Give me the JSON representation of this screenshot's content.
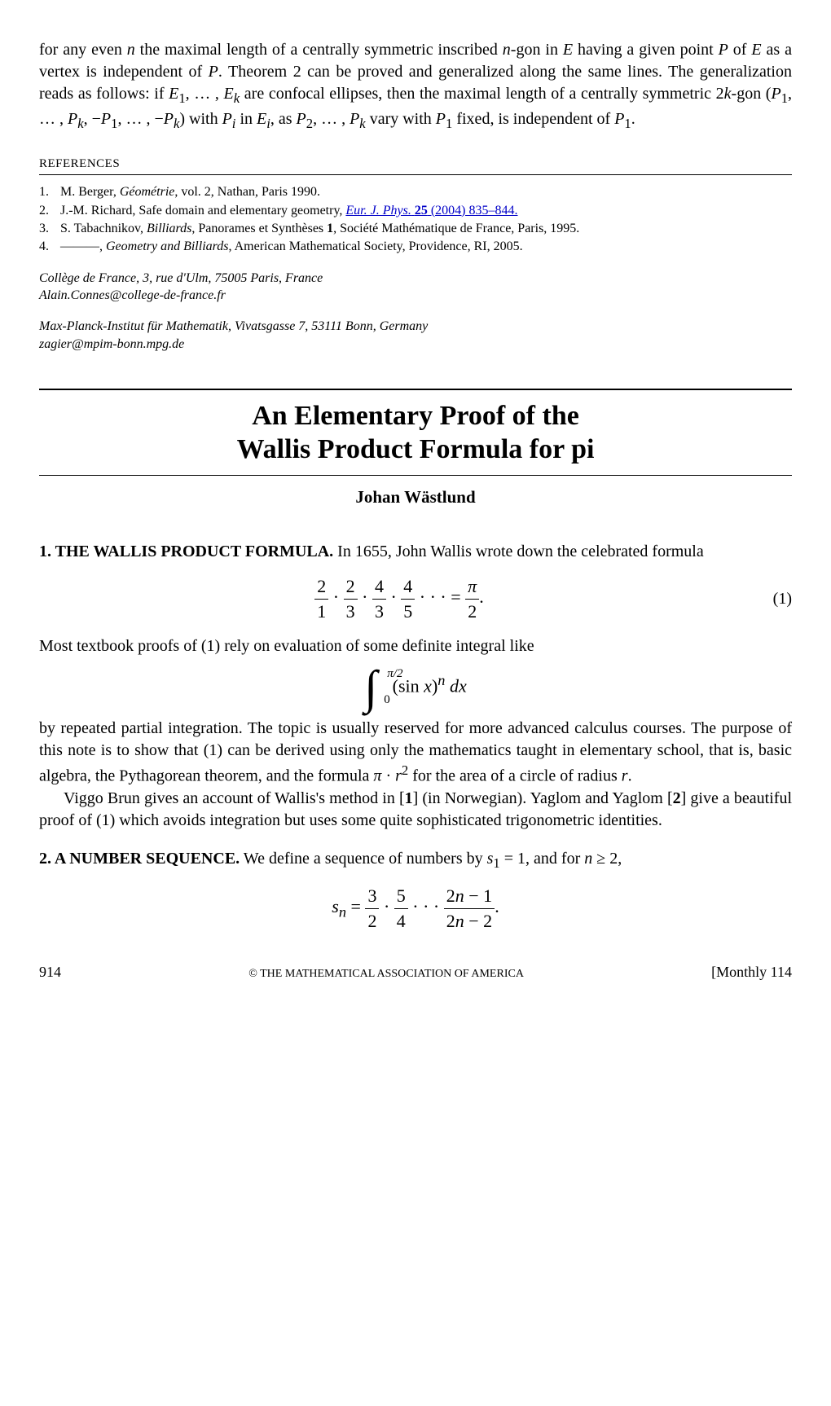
{
  "top_para_html": "for any even <i>n</i> the maximal length of a centrally symmetric inscribed <i>n</i>-gon in <span class='cal'>E</span> having a given point <i>P</i> of <span class='cal'>E</span> as a vertex is independent of <i>P</i>. Theorem 2 can be proved and generalized along the same lines. The generalization reads as follows: if <span class='cal'>E</span><sub>1</sub>, … , <span class='cal'>E</span><sub><i>k</i></sub> are confocal ellipses, then the maximal length of a centrally symmetric 2<i>k</i>-gon (<i>P</i><sub>1</sub>, … , <i>P</i><sub><i>k</i></sub>, −<i>P</i><sub>1</sub>, … , −<i>P</i><sub><i>k</i></sub>) with <i>P</i><sub><i>i</i></sub> in <span class='cal'>E</span><sub><i>i</i></sub>, as <i>P</i><sub>2</sub>, … , <i>P</i><sub><i>k</i></sub> vary with <i>P</i><sub>1</sub> fixed, is independent of <i>P</i><sub>1</sub>.",
  "refs_header": "REFERENCES",
  "references": [
    {
      "n": "1.",
      "html": "M. Berger, <i>Géométrie</i>, vol. 2, Nathan, Paris 1990."
    },
    {
      "n": "2.",
      "html": "J.-M. Richard, Safe domain and elementary geometry, <a class='ref-link' data-name='ref-link' data-interactable='true'><i>Eur. J. Phys.</i> <b>25</b> (2004) 835–844.</a>"
    },
    {
      "n": "3.",
      "html": "S. Tabachnikov, <i>Billiards</i>, Panorames et Synthèses <b>1</b>, Société Mathématique de France, Paris, 1995."
    },
    {
      "n": "4.",
      "html": "———, <i>Geometry and Billiards</i>, American Mathematical Society, Providence, RI, 2005."
    }
  ],
  "affil1_line1": "Collège de France, 3, rue d'Ulm, 75005 Paris, France",
  "affil1_line2": "Alain.Connes@college-de-france.fr",
  "affil2_line1": "Max-Planck-Institut für Mathematik, Vivatsgasse 7, 53111 Bonn, Germany",
  "affil2_line2": "zagier@mpim-bonn.mpg.de",
  "title_line1": "An Elementary Proof of the",
  "title_line2": "Wallis Product Formula for pi",
  "author": "Johan Wästlund",
  "sec1_lead": "1. THE WALLIS PRODUCT FORMULA.",
  "sec1_rest": " In 1655, John Wallis wrote down the celebrated formula",
  "eq1_html": "<span class='frac'><span class='t'>2</span><span class='b'>1</span></span> · <span class='frac'><span class='t'>2</span><span class='b'>3</span></span> · <span class='frac'><span class='t'>4</span><span class='b'>3</span></span> · <span class='frac'><span class='t'>4</span><span class='b'>5</span></span> · · · = <span class='frac'><span class='t'><i>π</i></span><span class='b'>2</span></span>.",
  "eq1_num": "(1)",
  "p2": "Most textbook proofs of (1) rely on evaluation of some definite integral like",
  "eq2_html": "<span class='int-wrap'><span class='bigint'>∫</span><span class='int-upper'>π/2</span><span class='int-lower'>0</span></span>&nbsp;&nbsp;&nbsp;(sin <i>x</i>)<sup><i>n</i></sup> <i>dx</i>",
  "p3_html": "by repeated partial integration. The topic is usually reserved for more advanced calculus courses. The purpose of this note is to show that (1) can be derived using only the mathematics taught in elementary school, that is, basic algebra, the Pythagorean theorem, and the formula <i>π</i> · <i>r</i><sup>2</sup> for the area of a circle of radius <i>r</i>.",
  "p4_html": "Viggo Brun gives an account of Wallis's method in [<b>1</b>] (in Norwegian). Yaglom and Yaglom [<b>2</b>] give a beautiful proof of (1) which avoids integration but uses some quite sophisticated trigonometric identities.",
  "sec2_lead": "2. A NUMBER SEQUENCE.",
  "sec2_rest_html": " We define a sequence of numbers by <i>s</i><sub>1</sub> = 1, and for <i>n</i> ≥ 2,",
  "eq3_html": "<i>s</i><sub><i>n</i></sub> = <span class='frac'><span class='t'>3</span><span class='b'>2</span></span> · <span class='frac'><span class='t'>5</span><span class='b'>4</span></span> · · · <span class='frac'><span class='t'>2<i>n</i> − 1</span><span class='b'>2<i>n</i> − 2</span></span>.",
  "footer_page": "914",
  "footer_center": "© THE MATHEMATICAL ASSOCIATION OF AMERICA",
  "footer_right": "[Monthly 114"
}
